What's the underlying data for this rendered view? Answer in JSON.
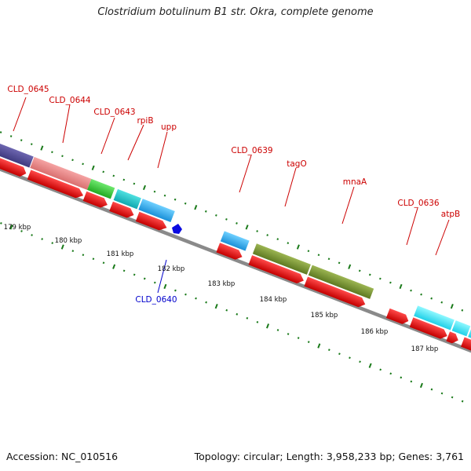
{
  "title": "Clostridium botulinum B1 str. Okra, complete genome",
  "footer": {
    "accession": "Accession: NC_010516",
    "summary": "Topology: circular; Length: 3,958,233 bp; Genes: 3,761"
  },
  "colors": {
    "backbone": "#8c8c8c",
    "tick": "#1a7a1a",
    "cds_arrow": "#ee1111",
    "label_forward": "#cc0000",
    "label_reverse": "#0000cc"
  },
  "scale_labels": [
    "179 kbp",
    "180 kbp",
    "181 kbp",
    "182 kbp",
    "183 kbp",
    "184 kbp",
    "185 kbp",
    "186 kbp",
    "187 kbp"
  ],
  "gene_labels": [
    {
      "name": "CLD_0645",
      "strand": "forward"
    },
    {
      "name": "CLD_0644",
      "strand": "forward"
    },
    {
      "name": "CLD_0643",
      "strand": "forward"
    },
    {
      "name": "rpiB",
      "strand": "forward"
    },
    {
      "name": "upp",
      "strand": "forward"
    },
    {
      "name": "CLD_0639",
      "strand": "forward"
    },
    {
      "name": "tagO",
      "strand": "forward"
    },
    {
      "name": "mnaA",
      "strand": "forward"
    },
    {
      "name": "CLD_0636",
      "strand": "forward"
    },
    {
      "name": "atpB",
      "strand": "forward"
    },
    {
      "name": "CLD_0640",
      "strand": "reverse"
    }
  ]
}
